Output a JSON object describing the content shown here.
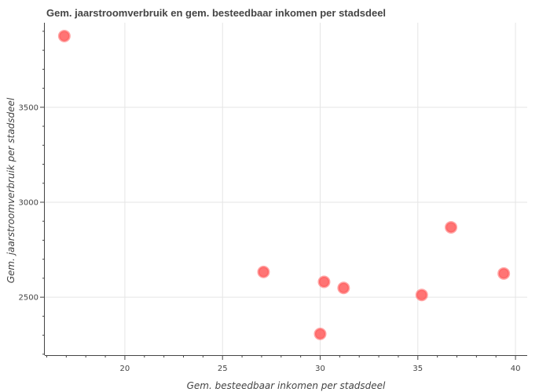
{
  "chart_data": {
    "type": "scatter",
    "title": "Gem. jaarstroomverbruik en gem. besteedbaar inkomen per stadsdeel",
    "xlabel": "Gem. besteedbaar inkomen per stadsdeel",
    "ylabel": "Gem. jaarstroomverbruik per stadsdeel",
    "xlim": [
      15.9,
      40.6
    ],
    "ylim": [
      2195,
      3945
    ],
    "x_ticks": [
      20,
      25,
      30,
      35,
      40
    ],
    "x_tick_labels": [
      "20",
      "25",
      "30",
      "35",
      "40"
    ],
    "y_ticks": [
      2500,
      3000,
      3500
    ],
    "y_tick_labels": [
      "2500",
      "3000",
      "3500"
    ],
    "grid": true,
    "series": [
      {
        "color": "#ff5c5c",
        "points": [
          {
            "x": 16.9,
            "y": 3875
          },
          {
            "x": 27.1,
            "y": 2633
          },
          {
            "x": 30.0,
            "y": 2307
          },
          {
            "x": 30.2,
            "y": 2581
          },
          {
            "x": 31.2,
            "y": 2549
          },
          {
            "x": 35.2,
            "y": 2512
          },
          {
            "x": 36.7,
            "y": 2868
          },
          {
            "x": 39.4,
            "y": 2625
          }
        ]
      }
    ]
  }
}
